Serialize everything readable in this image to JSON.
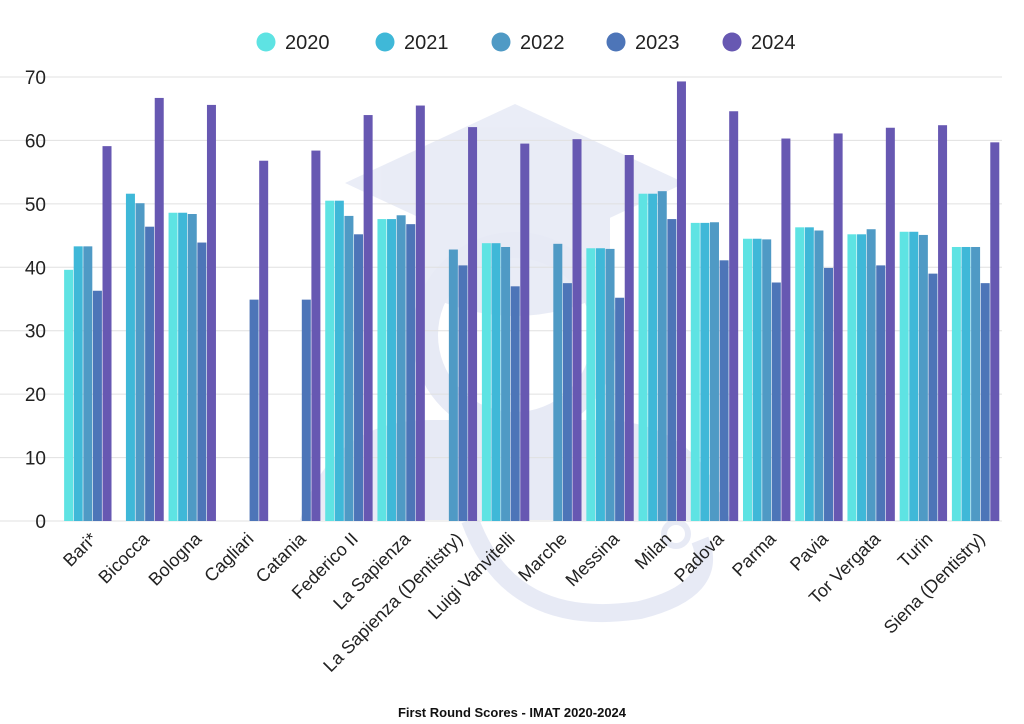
{
  "chart_data": {
    "type": "bar",
    "title": "First Round Scores - IMAT 2020-2024",
    "xlabel": "",
    "ylabel": "",
    "ylim": [
      0,
      70
    ],
    "yticks": [
      0,
      10,
      20,
      30,
      40,
      50,
      60,
      70
    ],
    "grid": true,
    "legend_position": "top-center",
    "categories": [
      "Bari*",
      "Bicocca",
      "Bologna",
      "Cagliari",
      "Catania",
      "Federico II",
      "La Sapienza",
      "La Sapienza (Dentistry)",
      "Luigi Vanvitelli",
      "Marche",
      "Messina",
      "Milan",
      "Padova",
      "Parma",
      "Pavia",
      "Tor Vergata",
      "Turin",
      "Siena (Dentistry)"
    ],
    "series": [
      {
        "name": "2020",
        "color": "#5ee3e3",
        "values": [
          39.6,
          null,
          48.6,
          null,
          null,
          50.5,
          47.6,
          null,
          43.8,
          null,
          43.0,
          51.6,
          47.0,
          44.5,
          46.3,
          45.2,
          45.6,
          43.2
        ]
      },
      {
        "name": "2021",
        "color": "#3fb8d8",
        "values": [
          43.3,
          51.6,
          48.6,
          null,
          null,
          50.5,
          47.6,
          null,
          43.8,
          null,
          43.0,
          51.6,
          47.0,
          44.5,
          46.3,
          45.2,
          45.6,
          43.2
        ]
      },
      {
        "name": "2022",
        "color": "#4f9ac5",
        "values": [
          43.3,
          50.1,
          48.4,
          null,
          null,
          48.1,
          48.2,
          42.8,
          43.2,
          43.7,
          42.9,
          52.0,
          47.1,
          44.4,
          45.8,
          46.0,
          45.1,
          43.2
        ]
      },
      {
        "name": "2023",
        "color": "#4d75b8",
        "values": [
          36.3,
          46.4,
          43.9,
          34.9,
          34.9,
          45.2,
          46.8,
          40.3,
          37.0,
          37.5,
          35.2,
          47.6,
          41.1,
          37.6,
          39.9,
          40.3,
          39.0,
          37.5
        ]
      },
      {
        "name": "2024",
        "color": "#6758b2",
        "values": [
          59.1,
          66.7,
          65.6,
          56.8,
          58.4,
          64.0,
          65.5,
          62.1,
          59.5,
          60.2,
          57.7,
          69.3,
          64.6,
          60.3,
          61.1,
          62.0,
          62.4,
          59.7
        ]
      }
    ]
  }
}
